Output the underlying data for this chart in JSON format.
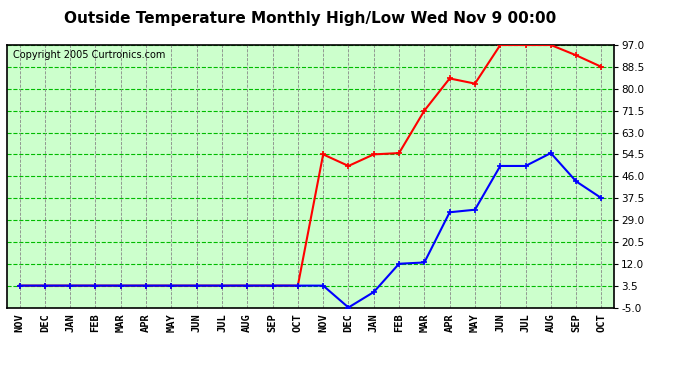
{
  "title": "Outside Temperature Monthly High/Low Wed Nov 9 00:00",
  "copyright": "Copyright 2005 Curtronics.com",
  "x_labels": [
    "NOV",
    "DEC",
    "JAN",
    "FEB",
    "MAR",
    "APR",
    "MAY",
    "JUN",
    "JUL",
    "AUG",
    "SEP",
    "OCT",
    "NOV",
    "DEC",
    "JAN",
    "FEB",
    "MAR",
    "APR",
    "MAY",
    "JUN",
    "JUL",
    "AUG",
    "SEP",
    "OCT"
  ],
  "yticks": [
    -5.0,
    3.5,
    12.0,
    20.5,
    29.0,
    37.5,
    46.0,
    54.5,
    63.0,
    71.5,
    80.0,
    88.5,
    97.0
  ],
  "ylim": [
    -5.0,
    97.0
  ],
  "high_temps": [
    3.5,
    3.5,
    3.5,
    3.5,
    3.5,
    3.5,
    3.5,
    3.5,
    3.5,
    3.5,
    3.5,
    3.5,
    54.5,
    50.0,
    54.5,
    55.0,
    71.5,
    84.0,
    82.0,
    97.0,
    97.0,
    97.0,
    93.0,
    88.5
  ],
  "low_temps": [
    3.5,
    3.5,
    3.5,
    3.5,
    3.5,
    3.5,
    3.5,
    3.5,
    3.5,
    3.5,
    3.5,
    3.5,
    3.5,
    -5.0,
    1.0,
    12.0,
    12.5,
    32.0,
    33.0,
    50.0,
    50.0,
    55.0,
    44.0,
    37.5
  ],
  "high_color": "#ff0000",
  "low_color": "#0000ff",
  "bg_color": "#ccffcc",
  "grid_color_h": "#00bb00",
  "grid_color_v": "#888888",
  "border_color": "#000000",
  "title_fontsize": 11,
  "copyright_fontsize": 7,
  "tick_fontsize": 7.5
}
